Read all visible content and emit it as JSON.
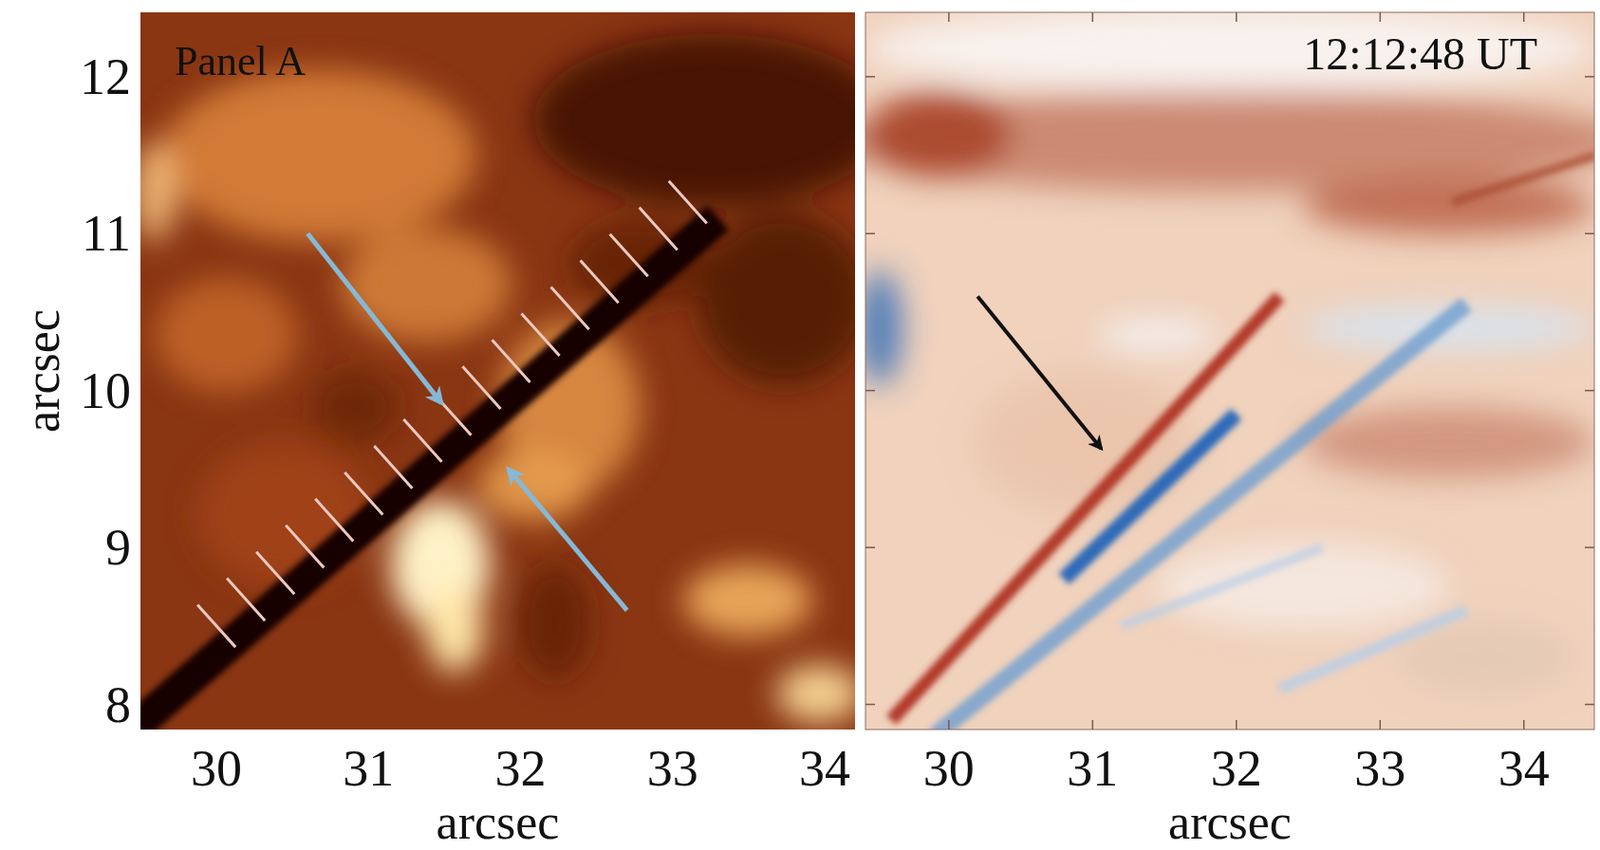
{
  "chart_data": [
    {
      "type": "image",
      "annotations": [
        "Panel A"
      ],
      "xlabel": "arcsec",
      "ylabel": "arcsec",
      "xlim": [
        29.5,
        34.2
      ],
      "ylim": [
        7.84,
        12.41
      ],
      "xticks": [
        30,
        31,
        32,
        33,
        34
      ],
      "yticks": [
        8,
        9,
        10,
        11,
        12
      ]
    },
    {
      "type": "image",
      "annotations": [
        "12:12:48 UT"
      ],
      "xlabel": "arcsec",
      "xlim": [
        29.42,
        34.49
      ],
      "ylim": [
        7.84,
        12.41
      ],
      "xticks": [
        30,
        31,
        32,
        33,
        34
      ],
      "yticks": [
        8,
        9,
        10,
        11,
        12
      ],
      "tick_labels": "x"
    }
  ]
}
